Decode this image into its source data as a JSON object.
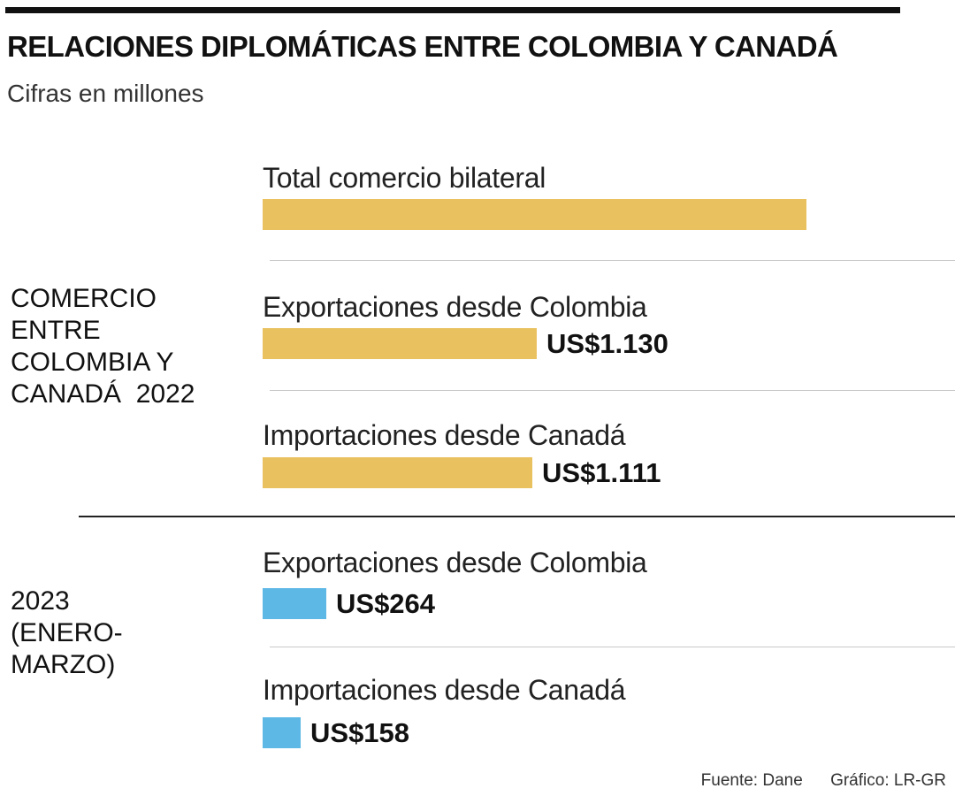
{
  "title": "RELACIONES DIPLOMÁTICAS ENTRE COLOMBIA Y CANADÁ",
  "subtitle": "Cifras en millones",
  "colors": {
    "bar_2022": "#E9C15F",
    "bar_2023": "#5DB8E6"
  },
  "groups": [
    {
      "label_lines": [
        "COMERCIO",
        "ENTRE",
        "COLOMBIA Y",
        "CANADÁ  2022"
      ]
    },
    {
      "label_lines": [
        "2023",
        "(ENERO-",
        "MARZO)"
      ]
    }
  ],
  "chart_data": {
    "type": "bar",
    "orientation": "horizontal",
    "title": "RELACIONES DIPLOMÁTICAS ENTRE COLOMBIA Y CANADÁ",
    "subtitle": "Cifras en millones",
    "unit": "US$ millones",
    "bars": [
      {
        "group": "COMERCIO ENTRE COLOMBIA Y CANADÁ 2022",
        "category": "Total comercio bilateral",
        "value": 2241,
        "value_label": ""
      },
      {
        "group": "COMERCIO ENTRE COLOMBIA Y CANADÁ 2022",
        "category": "Exportaciones desde Colombia",
        "value": 1130,
        "value_label": "US$1.130"
      },
      {
        "group": "COMERCIO ENTRE COLOMBIA Y CANADÁ 2022",
        "category": "Importaciones desde Canadá",
        "value": 1111,
        "value_label": "US$1.111"
      },
      {
        "group": "2023 (ENERO-MARZO)",
        "category": "Exportaciones desde Colombia",
        "value": 264,
        "value_label": "US$264"
      },
      {
        "group": "2023 (ENERO-MARZO)",
        "category": "Importaciones desde Canadá",
        "value": 158,
        "value_label": "US$158"
      }
    ]
  },
  "footer": {
    "source": "Fuente: Dane",
    "credit": "Gráfico: LR-GR"
  }
}
